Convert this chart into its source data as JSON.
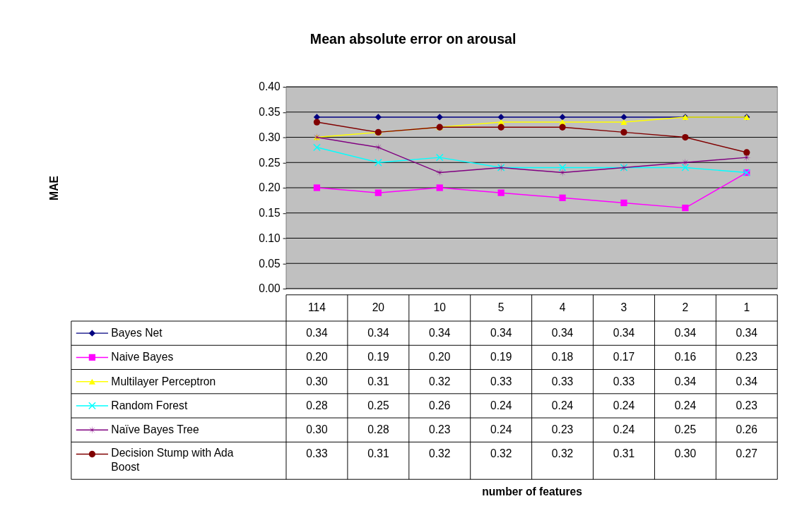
{
  "chart_data": {
    "type": "line",
    "title": "Mean absolute error on arousal",
    "annotations": [
      "MAE",
      "number of features"
    ],
    "categories": [
      "114",
      "20",
      "10",
      "5",
      "4",
      "3",
      "2",
      "1"
    ],
    "series": [
      {
        "name": "Bayes Net",
        "color": "#000080",
        "marker": "diamond",
        "values": [
          0.34,
          0.34,
          0.34,
          0.34,
          0.34,
          0.34,
          0.34,
          0.34
        ],
        "value_labels": [
          "0.34",
          "0.34",
          "0.34",
          "0.34",
          "0.34",
          "0.34",
          "0.34",
          "0.34"
        ]
      },
      {
        "name": "Naive Bayes",
        "color": "#ff00ff",
        "marker": "square",
        "values": [
          0.2,
          0.19,
          0.2,
          0.19,
          0.18,
          0.17,
          0.16,
          0.23
        ],
        "value_labels": [
          "0.20",
          "0.19",
          "0.20",
          "0.19",
          "0.18",
          "0.17",
          "0.16",
          "0.23"
        ]
      },
      {
        "name": "Multilayer Perceptron",
        "color": "#ffff00",
        "marker": "triangle",
        "values": [
          0.3,
          0.31,
          0.32,
          0.33,
          0.33,
          0.33,
          0.34,
          0.34
        ],
        "value_labels": [
          "0.30",
          "0.31",
          "0.32",
          "0.33",
          "0.33",
          "0.33",
          "0.34",
          "0.34"
        ]
      },
      {
        "name": "Random Forest",
        "color": "#00ffff",
        "marker": "cross",
        "values": [
          0.28,
          0.25,
          0.26,
          0.24,
          0.24,
          0.24,
          0.24,
          0.23
        ],
        "value_labels": [
          "0.28",
          "0.25",
          "0.26",
          "0.24",
          "0.24",
          "0.24",
          "0.24",
          "0.23"
        ]
      },
      {
        "name": "Naïve Bayes Tree",
        "color": "#800080",
        "marker": "star",
        "values": [
          0.3,
          0.28,
          0.23,
          0.24,
          0.23,
          0.24,
          0.25,
          0.26
        ],
        "value_labels": [
          "0.30",
          "0.28",
          "0.23",
          "0.24",
          "0.23",
          "0.24",
          "0.25",
          "0.26"
        ]
      },
      {
        "name": "Decision Stump with Ada Boost",
        "color": "#800000",
        "marker": "circle",
        "values": [
          0.33,
          0.31,
          0.32,
          0.32,
          0.32,
          0.31,
          0.3,
          0.27
        ],
        "value_labels": [
          "0.33",
          "0.31",
          "0.32",
          "0.32",
          "0.32",
          "0.31",
          "0.30",
          "0.27"
        ]
      }
    ],
    "ylim": [
      0,
      0.4
    ],
    "yticks": [
      {
        "value": 0,
        "label": "0.00"
      },
      {
        "value": 0.05,
        "label": "0.05"
      },
      {
        "value": 0.1,
        "label": "0.10"
      },
      {
        "value": 0.15,
        "label": "0.15"
      },
      {
        "value": 0.2,
        "label": "0.20"
      },
      {
        "value": 0.25,
        "label": "0.25"
      },
      {
        "value": 0.3,
        "label": "0.30"
      },
      {
        "value": 0.35,
        "label": "0.35"
      },
      {
        "value": 0.4,
        "label": "0.40"
      }
    ],
    "grid": "y",
    "legend": "bottom left"
  }
}
